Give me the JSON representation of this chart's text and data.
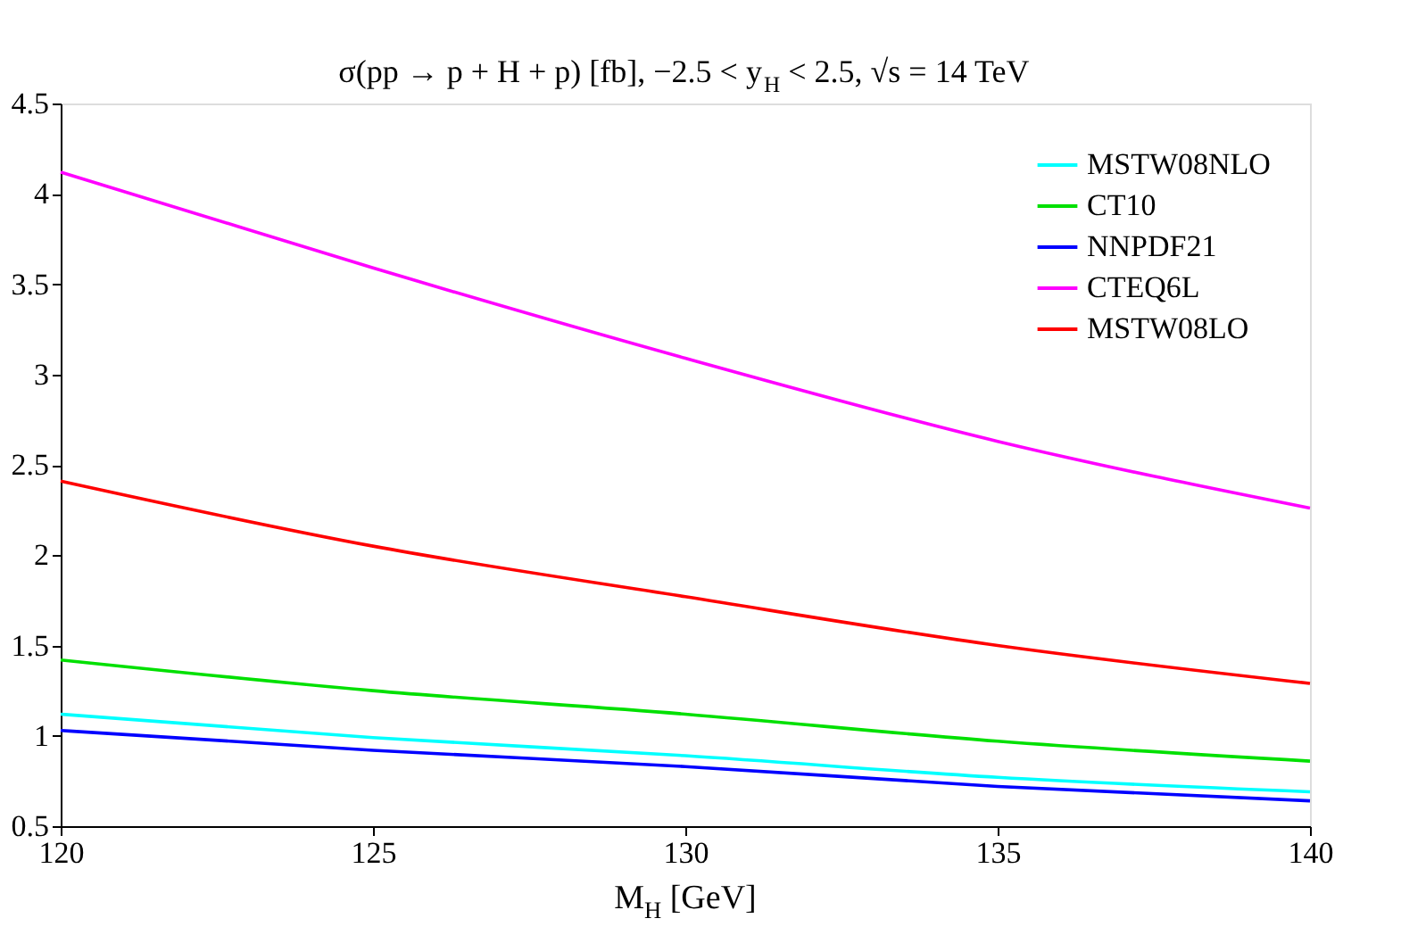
{
  "chart_data": {
    "type": "line",
    "title": "σ(pp → p + H + p) [fb], −2.5 < y$_{H}$ < 2.5, √s = 14 TeV",
    "xlabel": "M$_{H}$ [GeV]",
    "x": [
      120,
      125,
      130,
      135,
      140
    ],
    "series": [
      {
        "name": "MSTW08NLO",
        "color": "#00ffff",
        "values": [
          1.12,
          0.99,
          0.89,
          0.77,
          0.69
        ]
      },
      {
        "name": "CT10",
        "color": "#00e000",
        "values": [
          1.42,
          1.25,
          1.12,
          0.97,
          0.86
        ]
      },
      {
        "name": "NNPDF21",
        "color": "#0000ff",
        "values": [
          1.03,
          0.92,
          0.83,
          0.72,
          0.64
        ]
      },
      {
        "name": "CTEQ6L",
        "color": "#ff00ff",
        "values": [
          4.12,
          3.59,
          3.09,
          2.63,
          2.26
        ]
      },
      {
        "name": "MSTW08LO",
        "color": "#ff0000",
        "values": [
          2.41,
          2.05,
          1.77,
          1.5,
          1.29
        ]
      }
    ],
    "xlim": [
      120,
      140
    ],
    "xticks": [
      120,
      125,
      130,
      135,
      140
    ],
    "ylim": [
      0.5,
      4.5
    ],
    "yticks": [
      0.5,
      {
        "value": 1,
        "label": "1"
      },
      1.5,
      {
        "value": 2,
        "label": "2"
      },
      2.5,
      {
        "value": 3,
        "label": "3"
      },
      3.5,
      {
        "value": 4,
        "label": "4"
      },
      4.5
    ],
    "grid": false,
    "legend": "top right",
    "marker": "none",
    "line_style": "solid"
  }
}
